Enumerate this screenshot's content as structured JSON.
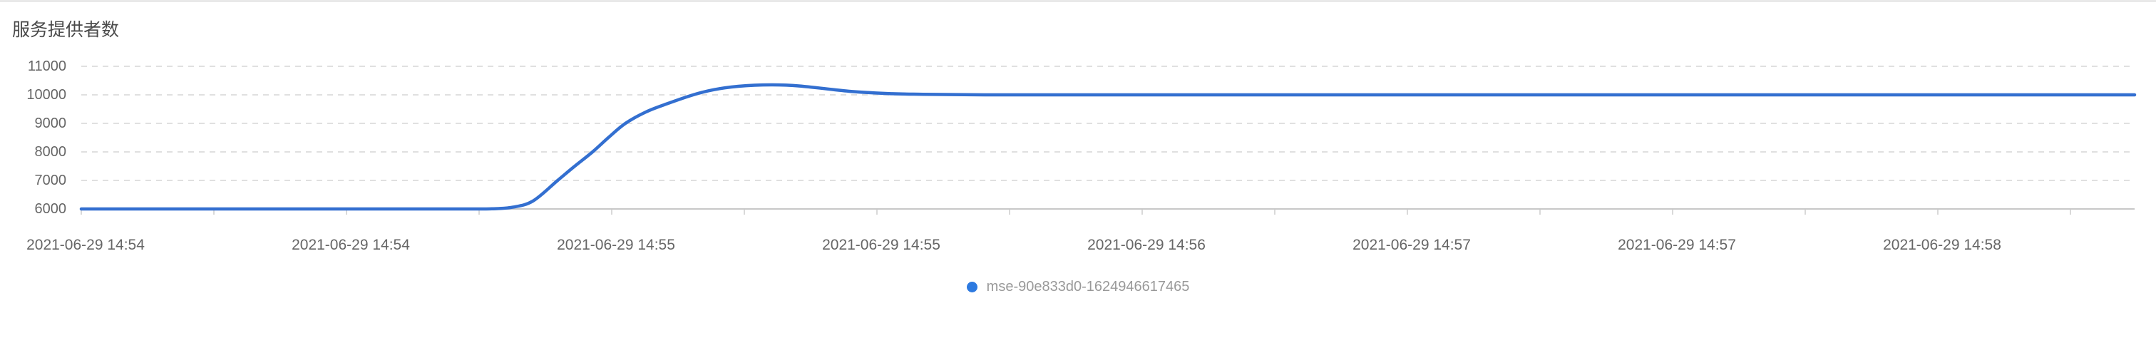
{
  "chart_data": {
    "type": "line",
    "title": "服务提供者数",
    "xlabel": "",
    "ylabel": "",
    "ylim": [
      6000,
      11000
    ],
    "y_ticks": [
      11000,
      10000,
      9000,
      8000,
      7000,
      6000
    ],
    "x_tick_labels": [
      "2021-06-29 14:54",
      "2021-06-29 14:54",
      "2021-06-29 14:55",
      "2021-06-29 14:55",
      "2021-06-29 14:56",
      "2021-06-29 14:57",
      "2021-06-29 14:57",
      "2021-06-29 14:58"
    ],
    "grid": {
      "horizontal": "dashed",
      "vertical": "none"
    },
    "legend_position": "bottom-center",
    "series": [
      {
        "name": "mse-90e833d0-1624946617465",
        "color": "#336fd0",
        "legend_dot_color": "#2d7ae0",
        "points": [
          [
            0.0,
            6000
          ],
          [
            0.05,
            6000
          ],
          [
            0.1,
            6000
          ],
          [
            0.15,
            6000
          ],
          [
            0.19,
            6000
          ],
          [
            0.2,
            6005
          ],
          [
            0.21,
            6060
          ],
          [
            0.22,
            6280
          ],
          [
            0.232,
            7000
          ],
          [
            0.24,
            7480
          ],
          [
            0.249,
            8000
          ],
          [
            0.257,
            8520
          ],
          [
            0.265,
            9000
          ],
          [
            0.275,
            9400
          ],
          [
            0.285,
            9680
          ],
          [
            0.298,
            10000
          ],
          [
            0.308,
            10180
          ],
          [
            0.32,
            10300
          ],
          [
            0.336,
            10350
          ],
          [
            0.35,
            10310
          ],
          [
            0.375,
            10120
          ],
          [
            0.395,
            10040
          ],
          [
            0.41,
            10020
          ],
          [
            0.44,
            10000
          ],
          [
            0.5,
            10000
          ],
          [
            0.6,
            10000
          ],
          [
            0.7,
            10000
          ],
          [
            0.8,
            10000
          ],
          [
            0.9,
            10000
          ],
          [
            1.0,
            10000
          ]
        ]
      }
    ],
    "style": {
      "grid_color": "#e0e0e0",
      "axis_color": "#c8c8c8",
      "tick_color": "#d9d9d9"
    }
  }
}
